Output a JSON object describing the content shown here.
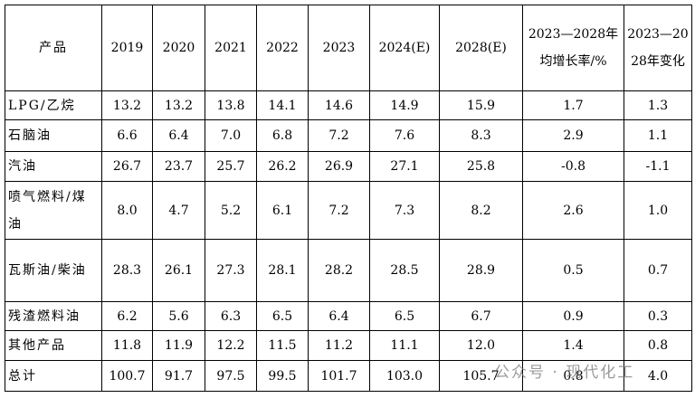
{
  "table": {
    "header": [
      "产品",
      "2019",
      "2020",
      "2021",
      "2022",
      "2023",
      "2024(E)",
      "2028(E)",
      "2023—2028年均增长率/%",
      "2023—2028年变化"
    ],
    "rows": [
      [
        "LPG/乙烷",
        "13.2",
        "13.2",
        "13.8",
        "14.1",
        "14.6",
        "14.9",
        "15.9",
        "1.7",
        "1.3"
      ],
      [
        "石脑油",
        "6.6",
        "6.4",
        "7.0",
        "6.8",
        "7.2",
        "7.6",
        "8.3",
        "2.9",
        "1.1"
      ],
      [
        "汽油",
        "26.7",
        "23.7",
        "25.7",
        "26.2",
        "26.9",
        "27.1",
        "25.8",
        "-0.8",
        "-1.1"
      ],
      [
        "喷气燃料/煤油",
        "8.0",
        "4.7",
        "5.2",
        "6.1",
        "7.2",
        "7.3",
        "8.2",
        "2.6",
        "1.0"
      ],
      [
        "瓦斯油/柴油",
        "28.3",
        "26.1",
        "27.3",
        "28.1",
        "28.2",
        "28.5",
        "28.9",
        "0.5",
        "0.7"
      ],
      [
        "残渣燃料油",
        "6.2",
        "5.6",
        "6.3",
        "6.5",
        "6.4",
        "6.5",
        "6.7",
        "0.9",
        "0.3"
      ],
      [
        "其他产品",
        "11.8",
        "11.9",
        "12.2",
        "11.5",
        "11.2",
        "11.1",
        "12.0",
        "1.4",
        "0.8"
      ],
      [
        "总计",
        "100.7",
        "91.7",
        "97.5",
        "99.5",
        "101.7",
        "103.0",
        "105.7",
        "0.8",
        "4.0"
      ]
    ]
  },
  "watermark": "公众号 · 现代化工"
}
